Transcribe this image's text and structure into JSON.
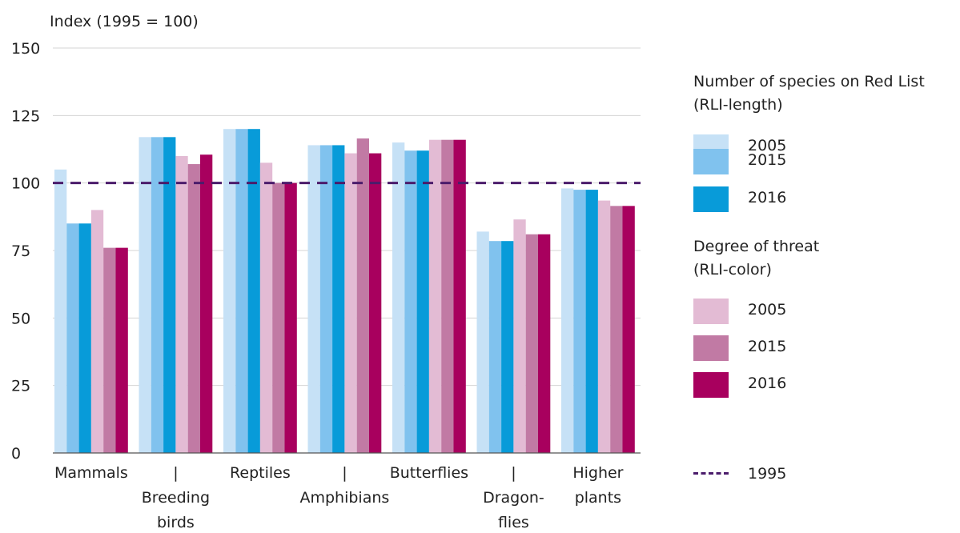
{
  "chart_data": {
    "type": "bar",
    "ylabel": "Index (1995 = 100)",
    "ylim": [
      0,
      150
    ],
    "yticks": [
      0,
      25,
      50,
      75,
      100,
      125,
      150
    ],
    "grid": true,
    "reference_line": {
      "value": 100,
      "label": "1995",
      "color": "#4b1c6b"
    },
    "categories": [
      [
        "Mammals"
      ],
      [
        "|",
        "Breeding",
        "birds"
      ],
      [
        "Reptiles"
      ],
      [
        "|",
        "Amphibians"
      ],
      [
        "Butterflies"
      ],
      [
        "|",
        "Dragon-",
        "flies"
      ],
      [
        "Higher",
        "plants"
      ]
    ],
    "legend_groups": [
      {
        "title_lines": [
          "Number of species on Red List",
          "(RLI-length)"
        ]
      },
      {
        "title_lines": [
          "Degree of threat",
          "(RLI-color)"
        ]
      }
    ],
    "series": [
      {
        "name": "2005",
        "group": 0,
        "color": "#c6e1f6",
        "values": [
          105,
          117,
          120,
          114,
          115,
          82,
          98
        ]
      },
      {
        "name": "2015",
        "group": 0,
        "color": "#80c2ee",
        "values": [
          85,
          117,
          120,
          114,
          112,
          78.5,
          97.5
        ]
      },
      {
        "name": "2016",
        "group": 0,
        "color": "#089bd9",
        "values": [
          85,
          117,
          120,
          114,
          112,
          78.5,
          97.5
        ]
      },
      {
        "name": "2005",
        "group": 1,
        "color": "#e3bbd4",
        "values": [
          90,
          110,
          107.5,
          111,
          116,
          86.5,
          93.5
        ]
      },
      {
        "name": "2015",
        "group": 1,
        "color": "#c17aa4",
        "values": [
          76,
          107,
          100,
          116.5,
          116,
          81,
          91.5
        ]
      },
      {
        "name": "2016",
        "group": 1,
        "color": "#a8005e",
        "values": [
          76,
          110.5,
          100,
          111,
          116,
          81,
          91.5
        ]
      }
    ]
  }
}
